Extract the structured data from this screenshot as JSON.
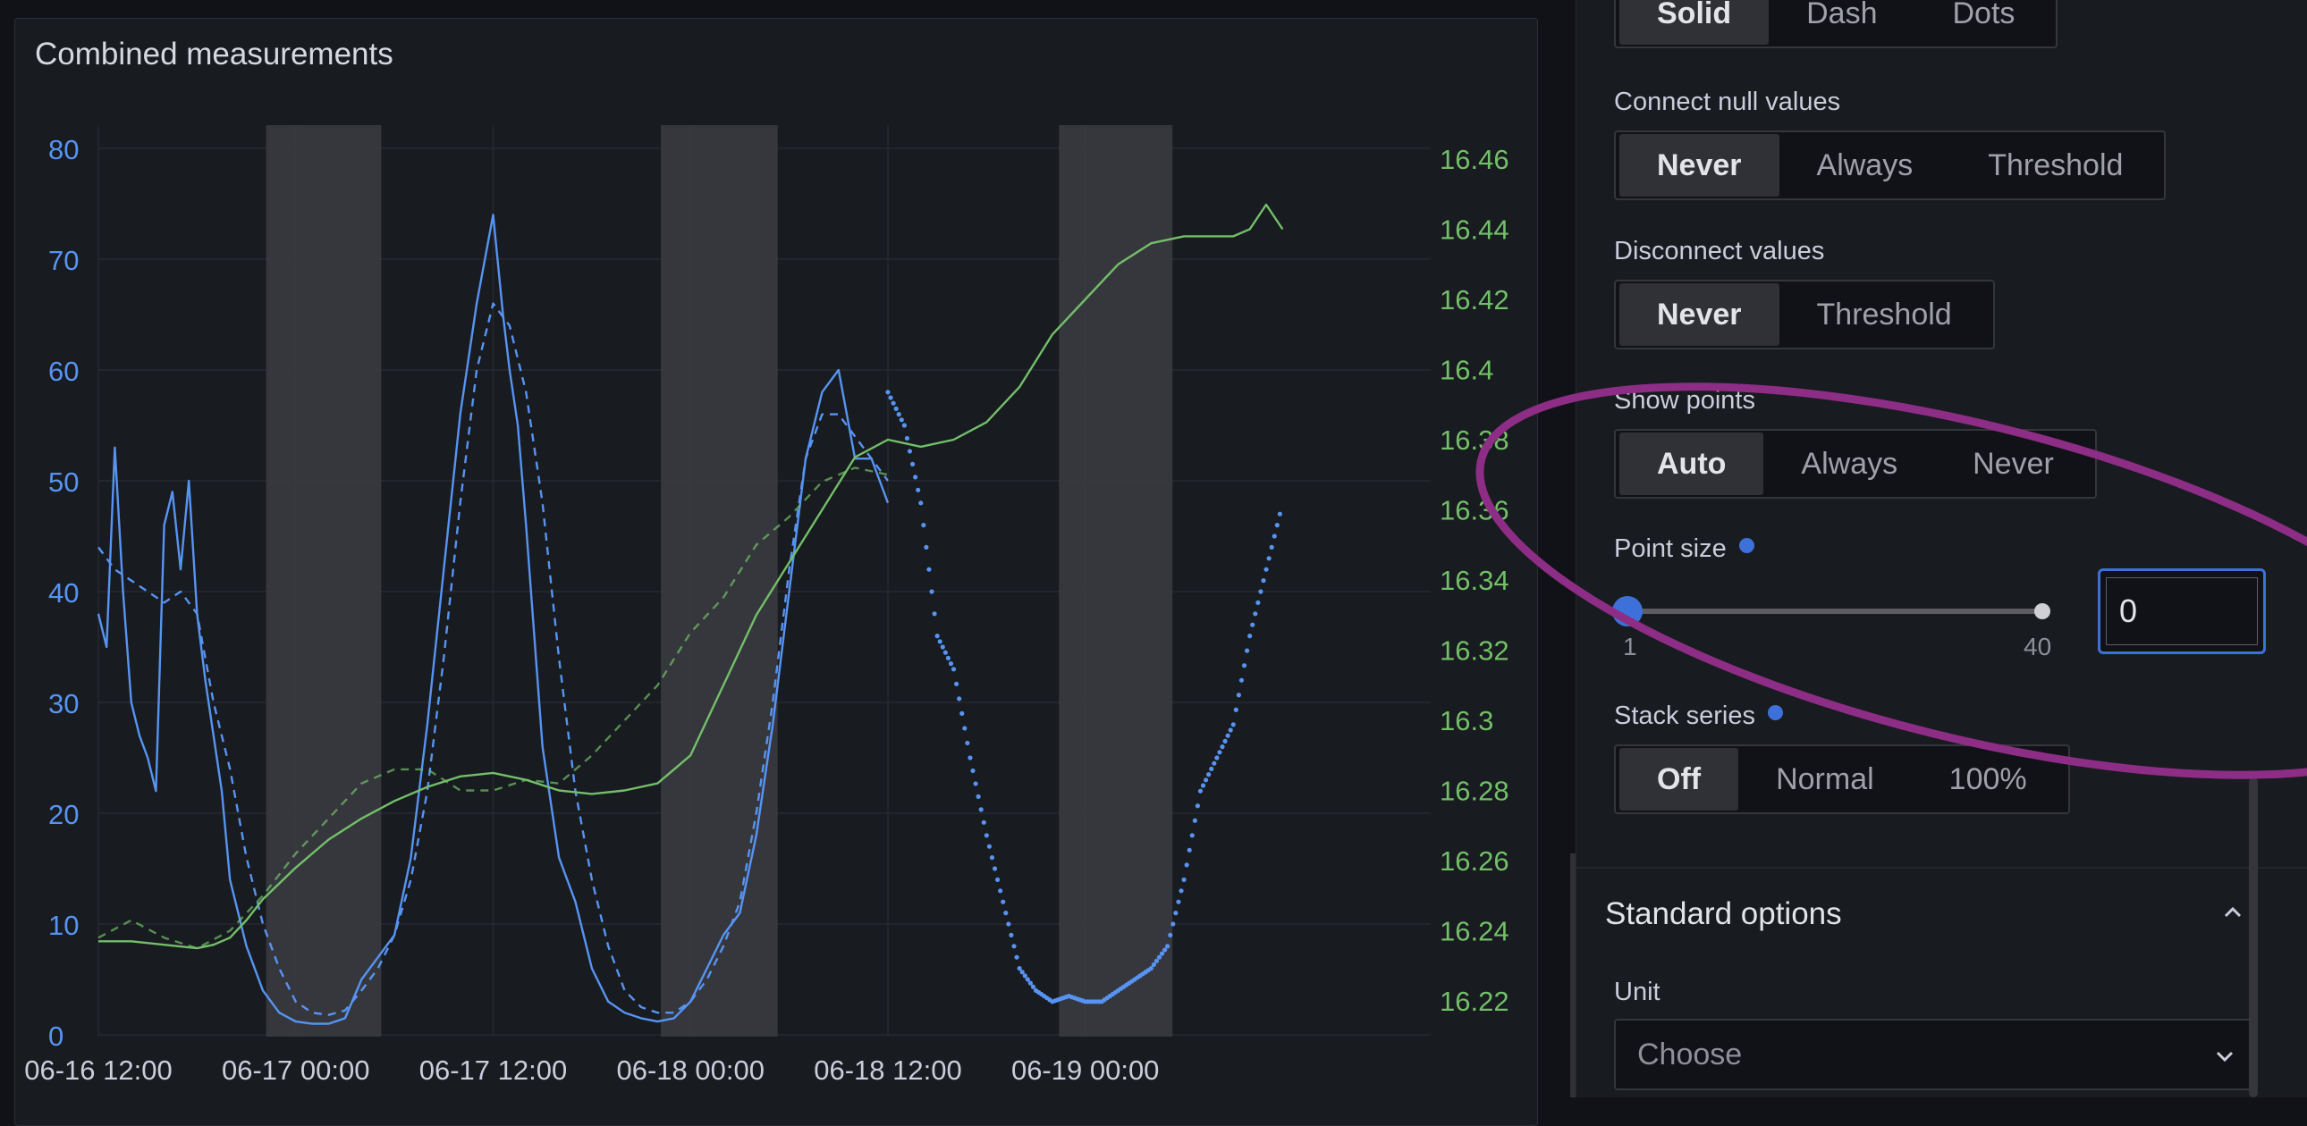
{
  "panel": {
    "title": "Combined measurements"
  },
  "line_style": {
    "options": [
      "Solid",
      "Dash",
      "Dots"
    ],
    "selected": "Solid"
  },
  "connect_null": {
    "label": "Connect null values",
    "options": [
      "Never",
      "Always",
      "Threshold"
    ],
    "selected": "Never"
  },
  "disconnect": {
    "label": "Disconnect values",
    "options": [
      "Never",
      "Threshold"
    ],
    "selected": "Never"
  },
  "show_points": {
    "label": "Show points",
    "options": [
      "Auto",
      "Always",
      "Never"
    ],
    "selected": "Auto"
  },
  "point_size": {
    "label": "Point size",
    "min": "1",
    "max": "40",
    "value": "0"
  },
  "stack_series": {
    "label": "Stack series",
    "options": [
      "Off",
      "Normal",
      "100%"
    ],
    "selected": "Off"
  },
  "standard_options": {
    "title": "Standard options",
    "unit_label": "Unit",
    "unit_placeholder": "Choose"
  },
  "colors": {
    "blue": "#5794f2",
    "green": "#73bf69",
    "accent": "#3d71d9",
    "annotation": "#8e2d86"
  },
  "chart_data": {
    "type": "line",
    "title": "Combined measurements",
    "x_ticks": [
      "06-16 12:00",
      "06-17 00:00",
      "06-17 12:00",
      "06-18 00:00",
      "06-18 12:00",
      "06-19 00:00"
    ],
    "y_left": {
      "ticks": [
        0,
        10,
        20,
        30,
        40,
        50,
        60,
        70,
        80
      ],
      "range": [
        0,
        80
      ]
    },
    "y_right": {
      "ticks": [
        16.22,
        16.24,
        16.26,
        16.28,
        16.3,
        16.32,
        16.34,
        16.36,
        16.38,
        16.4,
        16.42,
        16.44,
        16.46
      ],
      "range": [
        16.21,
        16.47
      ]
    },
    "x_hours_axis": "hours since 06-16 12:00",
    "shaded_night_regions": [
      [
        10.2,
        17.2
      ],
      [
        34.2,
        41.3
      ],
      [
        58.4,
        65.3
      ]
    ],
    "series": [
      {
        "name": "",
        "axis": "left",
        "color": "blue",
        "style": "solid",
        "x": [
          0,
          0.5,
          1,
          1.5,
          2,
          2.5,
          3,
          3.5,
          4,
          4.5,
          5,
          5.5,
          6,
          6.5,
          7,
          7.5,
          8,
          9,
          10,
          11,
          12,
          13,
          14,
          15,
          16,
          17,
          18,
          19,
          20,
          21,
          22,
          23,
          24,
          24.6,
          25,
          25.5,
          26,
          27,
          28,
          29,
          30,
          31,
          32,
          33,
          34,
          35,
          36,
          37,
          38,
          39,
          40,
          41,
          42,
          43,
          44,
          45,
          46,
          47,
          48
        ],
        "y": [
          38,
          35,
          53,
          40,
          30,
          27,
          25,
          22,
          46,
          49,
          42,
          50,
          38,
          32,
          27,
          22,
          14,
          8,
          4,
          2,
          1.2,
          1,
          1,
          1.5,
          5,
          7,
          9,
          16,
          28,
          42,
          56,
          66,
          74,
          65,
          60,
          55,
          46,
          26,
          16,
          12,
          6,
          3,
          2,
          1.5,
          1.2,
          1.5,
          3,
          6,
          9,
          11,
          18,
          28,
          40,
          52,
          58,
          60,
          52,
          52,
          48
        ]
      },
      {
        "name": "",
        "axis": "left",
        "color": "blue",
        "style": "dash",
        "x": [
          0,
          1,
          2,
          3,
          4,
          5,
          6,
          7,
          8,
          9,
          10,
          11,
          12,
          13,
          14,
          15,
          16,
          17,
          18,
          19,
          20,
          21,
          22,
          23,
          24,
          25,
          26,
          27,
          28,
          29,
          30,
          31,
          32,
          33,
          34,
          35,
          36,
          37,
          38,
          39,
          40,
          41,
          42,
          43,
          44,
          45,
          46,
          47,
          48
        ],
        "y": [
          44,
          42,
          41,
          40,
          39,
          40,
          38,
          30,
          24,
          16,
          10,
          6,
          3,
          2,
          1.8,
          2.2,
          4,
          6,
          9,
          14,
          22,
          34,
          48,
          60,
          66,
          64,
          58,
          48,
          34,
          22,
          14,
          8,
          4,
          2.5,
          2,
          2,
          3,
          5,
          8,
          12,
          20,
          30,
          42,
          52,
          56,
          56,
          54,
          52,
          50
        ]
      },
      {
        "name": "",
        "axis": "left",
        "color": "blue",
        "style": "dots",
        "x": [
          48,
          49,
          50,
          51,
          52,
          53,
          54,
          55,
          56,
          57,
          58,
          59,
          60,
          61,
          62,
          63,
          64,
          65,
          66,
          67,
          68,
          69,
          70,
          71,
          72
        ],
        "y": [
          58,
          55,
          48,
          36,
          33,
          25,
          18,
          12,
          6,
          4,
          3,
          3.5,
          3,
          3,
          4,
          5,
          6,
          8,
          14,
          22,
          25,
          28,
          36,
          42,
          48
        ]
      },
      {
        "name": "",
        "axis": "right",
        "color": "green",
        "style": "solid",
        "x": [
          0,
          2,
          4,
          6,
          7,
          8,
          9,
          10,
          12,
          14,
          16,
          18,
          20,
          22,
          24,
          26,
          28,
          30,
          32,
          34,
          36,
          38,
          40,
          42,
          44,
          46,
          48,
          50,
          52,
          54,
          56,
          58,
          60,
          62,
          64,
          66,
          68,
          69,
          70,
          71,
          72
        ],
        "y": [
          16.237,
          16.237,
          16.236,
          16.235,
          16.236,
          16.238,
          16.243,
          16.249,
          16.258,
          16.266,
          16.272,
          16.277,
          16.281,
          16.284,
          16.285,
          16.283,
          16.28,
          16.279,
          16.28,
          16.282,
          16.29,
          16.31,
          16.33,
          16.345,
          16.36,
          16.375,
          16.38,
          16.378,
          16.38,
          16.385,
          16.395,
          16.41,
          16.42,
          16.43,
          16.436,
          16.438,
          16.438,
          16.438,
          16.44,
          16.447,
          16.44
        ]
      },
      {
        "name": "",
        "axis": "right",
        "color": "green",
        "style": "dash",
        "x": [
          0,
          2,
          4,
          6,
          8,
          10,
          12,
          14,
          16,
          18,
          20,
          22,
          24,
          26,
          28,
          30,
          32,
          34,
          36,
          38,
          40,
          42,
          44,
          46,
          48
        ],
        "y": [
          16.238,
          16.243,
          16.238,
          16.235,
          16.24,
          16.25,
          16.262,
          16.272,
          16.282,
          16.286,
          16.286,
          16.28,
          16.28,
          16.283,
          16.282,
          16.29,
          16.3,
          16.31,
          16.325,
          16.335,
          16.35,
          16.358,
          16.368,
          16.372,
          16.37
        ]
      }
    ]
  }
}
